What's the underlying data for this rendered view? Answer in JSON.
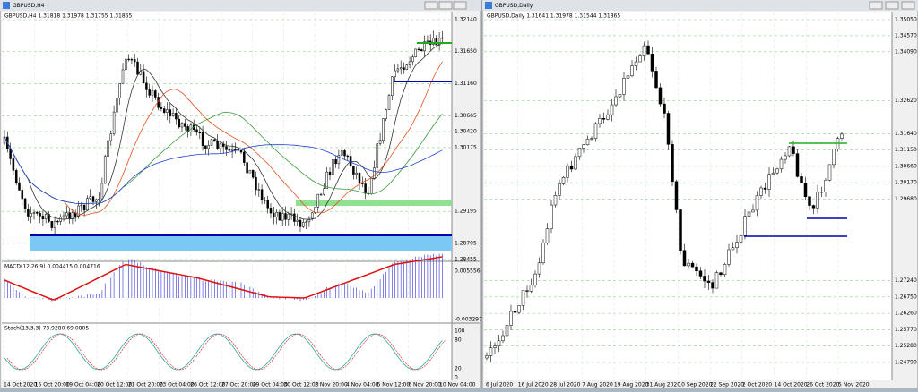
{
  "left": {
    "title": "GBPUSD,H4",
    "info": "GBPUSD,H4  1.31818 1.31978 1.31755 1.31865",
    "prices": [
      "1.32140",
      "1.31650",
      "1.31160",
      "1.30665",
      "1.30420",
      "1.30175",
      "1.29195",
      "1.28705",
      "1.28455"
    ],
    "macd": {
      "label": "MACD(12,26,9) 0.004415 0.004716",
      "axis": [
        "0.005556",
        "-0.003297"
      ]
    },
    "stoch": {
      "label": "Stoch(13,3,3) 73.9280 69.0805",
      "axis": [
        "100",
        "80",
        "20",
        "0"
      ]
    },
    "times": [
      "14 Oct 2020",
      "15 Oct 20:00",
      "19 Oct 04:00",
      "20 Oct 12:00",
      "21 Oct 20:00",
      "23 Oct 04:00",
      "26 Oct 12:00",
      "27 Oct 20:00",
      "29 Oct 04:00",
      "30 Oct 12:00",
      "2 Nov 20:00",
      "4 Nov 04:00",
      "5 Nov 12:00",
      "6 Nov 20:00",
      "10 Nov 04:00"
    ]
  },
  "right": {
    "title": "GBPUSD,Daily",
    "info": "GBPUSD,Daily  1.31641 1.31978 1.31544 1.31865",
    "prices": [
      "1.35050",
      "1.34570",
      "1.34090",
      "1.32620",
      "1.31640",
      "1.31150",
      "1.30660",
      "1.30170",
      "1.29680",
      "1.27240",
      "1.26750",
      "1.26260",
      "1.25770",
      "1.25280",
      "1.24790"
    ],
    "times": [
      "6 Jul 2020",
      "16 Jul 2020",
      "28 Jul 2020",
      "7 Aug 2020",
      "19 Aug 2020",
      "31 Aug 2020",
      "10 Sep 2020",
      "22 Sep 2020",
      "2 Oct 2020",
      "14 Oct 2020",
      "26 Oct 2020",
      "5 Nov 2020"
    ]
  }
}
